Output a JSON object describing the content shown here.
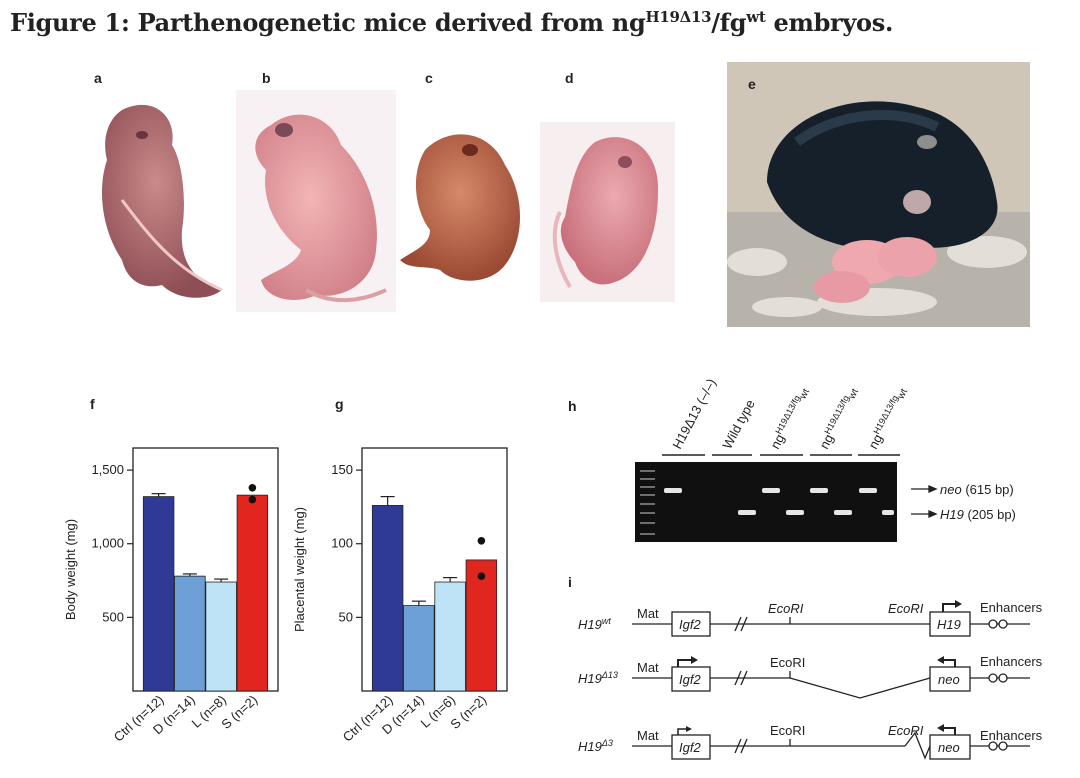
{
  "figure": {
    "title_prefix": "Figure 1: Parthenogenetic mice derived from ng",
    "title_sup1": "H19Δ13",
    "title_mid": "/fg",
    "title_sup2": "wt",
    "title_suffix": " embryos."
  },
  "panels": {
    "a": "a",
    "b": "b",
    "c": "c",
    "d": "d",
    "e": "e",
    "f": "f",
    "g": "g",
    "h": "h",
    "i": "i"
  },
  "chart_data": [
    {
      "type": "bar",
      "panel": "f",
      "categories": [
        "Ctrl (n=12)",
        "D (n=14)",
        "L (n=8)",
        "S (n=2)"
      ],
      "values": [
        1320,
        780,
        740,
        1330
      ],
      "errors": [
        20,
        15,
        20,
        null
      ],
      "points": [
        [
          null
        ],
        [
          null
        ],
        [
          null
        ],
        [
          1300,
          1380
        ]
      ],
      "ylabel": "Body weight (mg)",
      "yticks": [
        "500",
        "1,000",
        "1,500"
      ],
      "ylim": [
        0,
        1650
      ],
      "colors": [
        "#2f3a97",
        "#6ea0d8",
        "#bfe3f6",
        "#e0261f"
      ]
    },
    {
      "type": "bar",
      "panel": "g",
      "categories": [
        "Ctrl (n=12)",
        "D (n=14)",
        "L (n=6)",
        "S (n=2)"
      ],
      "values": [
        126,
        58,
        74,
        89
      ],
      "errors": [
        6,
        3,
        3,
        null
      ],
      "points": [
        [
          null
        ],
        [
          null
        ],
        [
          null
        ],
        [
          102,
          78
        ]
      ],
      "ylabel": "Placental weight (mg)",
      "yticks": [
        "50",
        "100",
        "150"
      ],
      "ylim": [
        0,
        165
      ],
      "colors": [
        "#2f3a97",
        "#6ea0d8",
        "#bfe3f6",
        "#e0261f"
      ]
    }
  ],
  "gel": {
    "lanes": [
      "H19Δ13 (–/–)",
      "Wild type",
      "ng",
      "ng",
      "ng"
    ],
    "lane_sups": [
      "",
      "",
      "H19Δ13/fg",
      "H19Δ13/fg",
      "H19Δ13/fg"
    ],
    "lane_sup2": [
      "",
      "",
      "wt",
      "wt",
      "wt"
    ],
    "band_neo_name": "neo",
    "band_neo_size": " (615 bp)",
    "band_h19_name": "H19",
    "band_h19_size": " (205 bp)"
  },
  "diagram": {
    "rows": [
      {
        "label_main": "H19",
        "label_sup": "wt",
        "mat": "Mat",
        "igf2": "Igf2",
        "ecori1": "EcoRI",
        "ecori2": "EcoRI",
        "box2": "H19",
        "enh": "Enhancers"
      },
      {
        "label_main": "H19",
        "label_sup": "Δ13",
        "mat": "Mat",
        "igf2": "Igf2",
        "ecori1": "EcoRI",
        "box2": "neo",
        "enh": "Enhancers"
      },
      {
        "label_main": "H19",
        "label_sup": "Δ3",
        "mat": "Mat",
        "igf2": "Igf2",
        "ecori1": "EcoRI",
        "ecori2": "EcoRI",
        "box2": "neo",
        "enh": "Enhancers"
      }
    ]
  }
}
